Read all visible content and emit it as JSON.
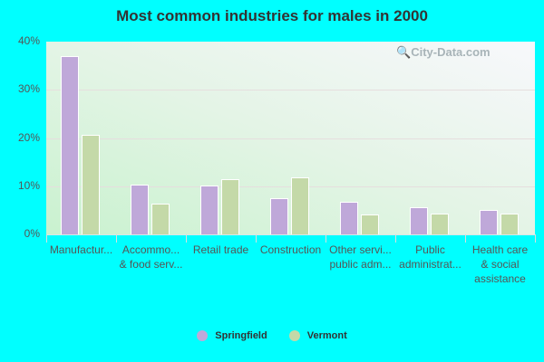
{
  "title": "Most common industries for males in 2000",
  "watermark": "City-Data.com",
  "colors": {
    "springfield": "#bfa8d9",
    "vermont": "#c4d9a8"
  },
  "y_ticks": [
    "40%",
    "30%",
    "20%",
    "10%",
    "0%"
  ],
  "legend": [
    {
      "name": "Springfield",
      "color": "#bfa8d9"
    },
    {
      "name": "Vermont",
      "color": "#c4d9a8"
    }
  ],
  "x_labels": [
    "Manufactur...",
    "Accommo...\n& food serv...",
    "Retail trade",
    "Construction",
    "Other servi...\npublic adm...",
    "Public\nadministrat...",
    "Health care\n& social\nassistance"
  ],
  "chart_data": {
    "type": "bar",
    "title": "Most common industries for males in 2000",
    "categories": [
      "Manufacturing",
      "Accommodation & food services",
      "Retail trade",
      "Construction",
      "Other services, except public administration",
      "Public administration",
      "Health care & social assistance"
    ],
    "series": [
      {
        "name": "Springfield",
        "values": [
          37.0,
          10.3,
          10.1,
          7.6,
          6.7,
          5.6,
          5.0
        ]
      },
      {
        "name": "Vermont",
        "values": [
          20.6,
          6.3,
          11.4,
          11.8,
          4.1,
          4.3,
          4.3
        ]
      }
    ],
    "xlabel": "",
    "ylabel": "",
    "ylim": [
      0,
      40
    ],
    "y_ticks": [
      "0%",
      "10%",
      "20%",
      "30%",
      "40%"
    ],
    "grid": true,
    "legend_position": "bottom"
  }
}
